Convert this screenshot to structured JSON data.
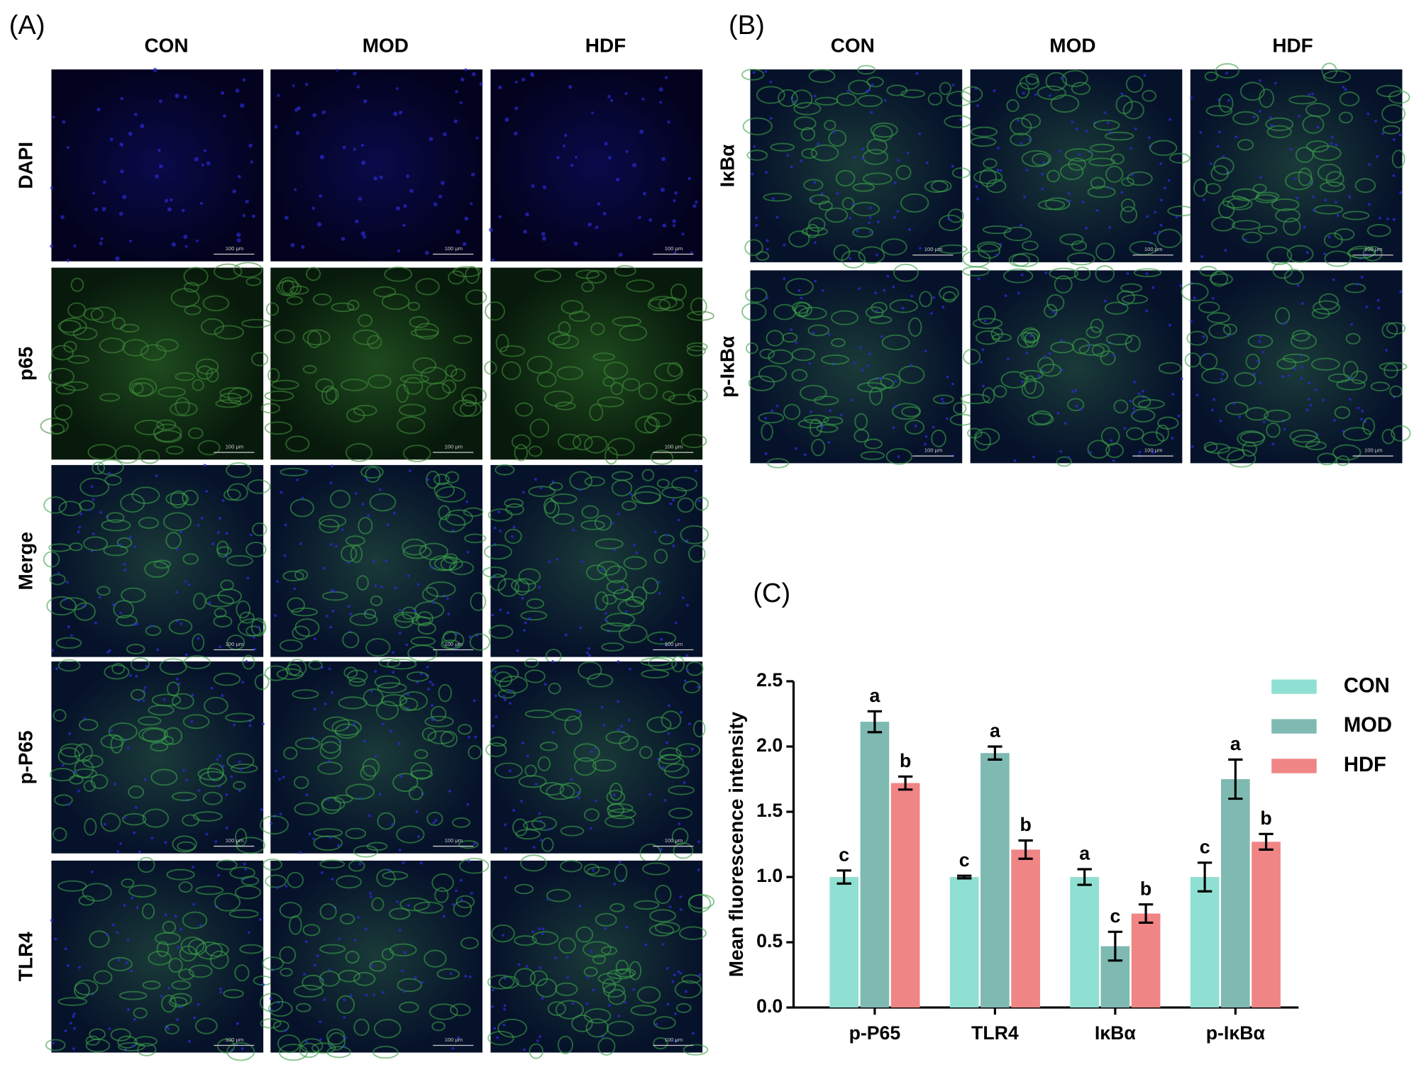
{
  "panel_a": {
    "label": "(A)",
    "columns": [
      "CON",
      "MOD",
      "HDF"
    ],
    "rows": [
      "DAPI",
      "p65",
      "Merge",
      "p-P65",
      "TLR4"
    ]
  },
  "panel_b": {
    "label": "(B)",
    "columns": [
      "CON",
      "MOD",
      "HDF"
    ],
    "rows": [
      "IκBα",
      "p-IκBα"
    ]
  },
  "scale_bar_label": "100 μm",
  "chart_data": {
    "type": "bar",
    "panel_label": "(C)",
    "ylabel": "Mean fluorescence intensity",
    "categories": [
      "p-P65",
      "TLR4",
      "IκBα",
      "p-IκBα"
    ],
    "series": [
      {
        "name": "CON",
        "color": "#8fe0d2",
        "values": [
          1.0,
          1.0,
          1.0,
          1.0
        ],
        "errors": [
          0.05,
          0.01,
          0.06,
          0.11
        ],
        "letters": [
          "c",
          "c",
          "a",
          "c"
        ]
      },
      {
        "name": "MOD",
        "color": "#7fbab2",
        "values": [
          2.19,
          1.95,
          0.47,
          1.75
        ],
        "errors": [
          0.08,
          0.05,
          0.11,
          0.15
        ],
        "letters": [
          "a",
          "a",
          "c",
          "a"
        ]
      },
      {
        "name": "HDF",
        "color": "#f08585",
        "values": [
          1.72,
          1.21,
          0.72,
          1.27
        ],
        "errors": [
          0.05,
          0.07,
          0.07,
          0.06
        ],
        "letters": [
          "b",
          "b",
          "b",
          "b"
        ]
      }
    ],
    "ylim": [
      0,
      2.5
    ],
    "yticks": [
      {
        "value": 0,
        "label": "0.0"
      },
      0.5,
      {
        "value": 1,
        "label": "1.0"
      },
      1.5,
      {
        "value": 2,
        "label": "2.0"
      },
      2.5
    ],
    "legend": "right"
  }
}
